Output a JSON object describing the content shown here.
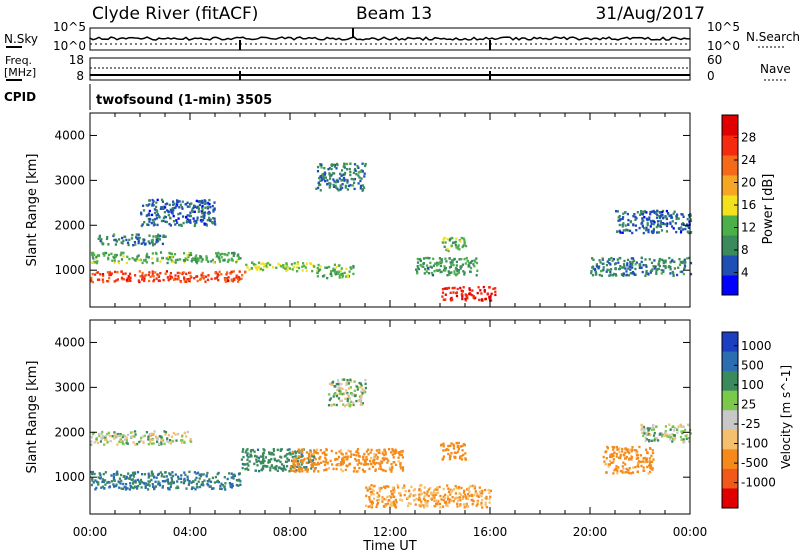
{
  "header": {
    "station": "Clyde River (fitACF)",
    "beam": "Beam 13",
    "date": "31/Aug/2017"
  },
  "strips": {
    "nsky": {
      "label": "N.Sky",
      "ticks": [
        "10^5",
        "10^0"
      ],
      "right_ticks": [
        "10^5",
        "10^0"
      ],
      "right_label": "N.Search"
    },
    "freq": {
      "label_top": "Freq.",
      "label_bottom": "[MHz]",
      "ticks": [
        "18",
        "8"
      ],
      "right_ticks": [
        "60",
        "0"
      ],
      "right_label": "Nave"
    },
    "cpid": {
      "label": "CPID",
      "value": "twofsound (1-min) 3505"
    }
  },
  "colors": {
    "power_scale": [
      "#0000ff",
      "#1f4fb5",
      "#3a8a5c",
      "#4cb04a",
      "#f2e11c",
      "#f5a623",
      "#f56a18",
      "#f52a0e",
      "#e10000"
    ],
    "velocity_scale": [
      "#1c3fc2",
      "#2a6db0",
      "#3a8a5c",
      "#7ac94a",
      "#c8c8c8",
      "#f5c06e",
      "#f58a1a",
      "#f2581a",
      "#e10000"
    ],
    "ground_scatter": "#a0a0a0"
  },
  "chart_data": [
    {
      "type": "heatmap",
      "title": "",
      "xlabel": "",
      "ylabel": "Slant Range [km]",
      "x_ticks": [
        "00:00",
        "04:00",
        "08:00",
        "12:00",
        "16:00",
        "20:00",
        "00:00"
      ],
      "xlim_hours": [
        0,
        24
      ],
      "y_ticks": [
        1000,
        2000,
        3000,
        4000
      ],
      "ylim": [
        180,
        4500
      ],
      "colorbar": {
        "label": "Power [dB]",
        "ticks": [
          4,
          8,
          12,
          16,
          20,
          24,
          28
        ],
        "range": [
          0,
          32
        ]
      },
      "features": [
        {
          "t0": 0.0,
          "t1": 6.2,
          "r": 880,
          "dr": 120,
          "value": 26
        },
        {
          "t0": 0.0,
          "t1": 6.0,
          "r": 1300,
          "dr": 120,
          "value": 12
        },
        {
          "t0": 0.3,
          "t1": 3.0,
          "r": 1700,
          "dr": 120,
          "value": 8
        },
        {
          "t0": 2.0,
          "t1": 5.0,
          "r": 2300,
          "dr": 300,
          "value": 6
        },
        {
          "t0": 6.2,
          "t1": 9.0,
          "r": 1100,
          "dr": 100,
          "value": 14
        },
        {
          "t0": 9.0,
          "t1": 10.5,
          "r": 1000,
          "dr": 150,
          "value": 12
        },
        {
          "t0": 9.0,
          "t1": 11.0,
          "r": 3100,
          "dr": 300,
          "value": 8
        },
        {
          "t0": 13.0,
          "t1": 15.5,
          "r": 1100,
          "dr": 200,
          "value": 10
        },
        {
          "t0": 14.0,
          "t1": 16.2,
          "r": 500,
          "dr": 150,
          "value": 28
        },
        {
          "t0": 14.0,
          "t1": 15.0,
          "r": 1600,
          "dr": 150,
          "value": 12
        },
        {
          "t0": 20.0,
          "t1": 24.0,
          "r": 1100,
          "dr": 200,
          "value": 8
        },
        {
          "t0": 21.0,
          "t1": 24.0,
          "r": 2100,
          "dr": 250,
          "value": 6
        }
      ]
    },
    {
      "type": "heatmap",
      "title": "",
      "xlabel": "Time UT",
      "ylabel": "Slant Range [km]",
      "x_ticks": [
        "00:00",
        "04:00",
        "08:00",
        "12:00",
        "16:00",
        "20:00",
        "00:00"
      ],
      "xlim_hours": [
        0,
        24
      ],
      "y_ticks": [
        1000,
        2000,
        3000,
        4000
      ],
      "ylim": [
        180,
        4500
      ],
      "colorbar": {
        "label": "Velocity [m s^-1]",
        "ticks": [
          1000,
          500,
          100,
          25,
          -25,
          -100,
          -500,
          -1000
        ]
      },
      "features": [
        {
          "t0": 0.0,
          "t1": 6.0,
          "r": 950,
          "dr": 200,
          "value": 300
        },
        {
          "t0": 0.0,
          "t1": 4.0,
          "r": 1900,
          "dr": 150,
          "value": 0
        },
        {
          "t0": 6.0,
          "t1": 9.0,
          "r": 1400,
          "dr": 250,
          "value": 200
        },
        {
          "t0": 8.0,
          "t1": 12.5,
          "r": 1400,
          "dr": 250,
          "value": -400
        },
        {
          "t0": 9.5,
          "t1": 11.0,
          "r": 2900,
          "dr": 300,
          "value": 0
        },
        {
          "t0": 11.0,
          "t1": 16.0,
          "r": 600,
          "dr": 250,
          "value": -300
        },
        {
          "t0": 14.0,
          "t1": 15.0,
          "r": 1600,
          "dr": 200,
          "value": -600
        },
        {
          "t0": 20.5,
          "t1": 22.5,
          "r": 1400,
          "dr": 300,
          "value": -400
        },
        {
          "t0": 22.0,
          "t1": 24.0,
          "r": 2000,
          "dr": 200,
          "value": 0
        }
      ]
    }
  ]
}
